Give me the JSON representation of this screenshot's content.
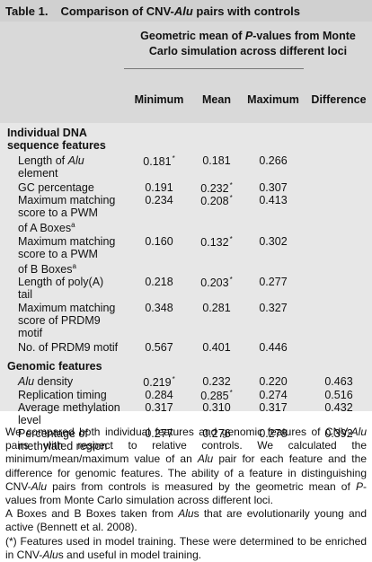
{
  "title": {
    "label": "Table 1.",
    "text": "Comparison of CNV-Alu pairs with controls"
  },
  "header": {
    "main_lines": [
      "Geometric mean of P-values from Monte",
      "Carlo simulation across different loci"
    ],
    "columns": [
      "Minimum",
      "Mean",
      "Maximum",
      "Difference"
    ]
  },
  "sections": [
    {
      "title_lines": [
        "Individual DNA",
        "sequence features"
      ],
      "rows": [
        {
          "label_lines": [
            "Length of Alu",
            "element"
          ],
          "min": "0.181",
          "min_star": "*",
          "mean": "0.181",
          "max": "0.266"
        },
        {
          "label_lines": [
            "GC percentage"
          ],
          "min": "0.191",
          "mean": "0.232",
          "mean_star": "*",
          "max": "0.307"
        },
        {
          "label_lines": [
            "Maximum matching",
            "score to a PWM",
            "of A Boxes"
          ],
          "label_sup": "a",
          "min": "0.234",
          "mean": "0.208",
          "mean_star": "*",
          "max": "0.413"
        },
        {
          "label_lines": [
            "Maximum matching",
            "score to a PWM",
            "of B Boxes"
          ],
          "label_sup": "a",
          "min": "0.160",
          "mean": "0.132",
          "mean_star": "*",
          "max": "0.302"
        },
        {
          "label_lines": [
            "Length of poly(A)",
            "tail"
          ],
          "min": "0.218",
          "mean": "0.203",
          "mean_star": "*",
          "max": "0.277"
        },
        {
          "label_lines": [
            "Maximum matching",
            "score of PRDM9",
            "motif"
          ],
          "min": "0.348",
          "mean": "0.281",
          "max": "0.327"
        },
        {
          "label_lines": [
            "No. of PRDM9 motif"
          ],
          "min": "0.567",
          "mean": "0.401",
          "max": "0.446"
        }
      ]
    },
    {
      "title_lines": [
        "Genomic features"
      ],
      "rows": [
        {
          "label_lines": [
            "Alu density"
          ],
          "min": "0.219",
          "min_star": "*",
          "mean": "0.232",
          "max": "0.220",
          "diff": "0.463"
        },
        {
          "label_lines": [
            "Replication timing"
          ],
          "min": "0.284",
          "mean": "0.285",
          "mean_star": "*",
          "max": "0.274",
          "diff": "0.516"
        },
        {
          "label_lines": [
            "Average methylation",
            "level"
          ],
          "min": "0.317",
          "mean": "0.310",
          "max": "0.317",
          "diff": "0.432"
        },
        {
          "label_lines": [
            "Percentage of",
            "methylated region"
          ],
          "min": "0.277",
          "mean": "0.276",
          "max": "0.278",
          "diff": "0.392"
        }
      ]
    }
  ],
  "footer": {
    "caption": "We compared both individual features and genomic features of CNV-Alu pairs with respect to relative controls. We calculated the minimum/mean/maximum value of an Alu pair for each feature and the difference for genomic features. The ability of a feature in distinguishing CNV-Alu pairs from controls is measured by the geometric mean of P-values from Monte Carlo simulation across different loci.",
    "note_a": "A Boxes and B Boxes taken from Alus that are evolutionarily young and active (Bennett et al. 2008).",
    "note_star": "(*) Features used in model training. These were determined to be enriched in CNV-Alus and useful in model training."
  }
}
